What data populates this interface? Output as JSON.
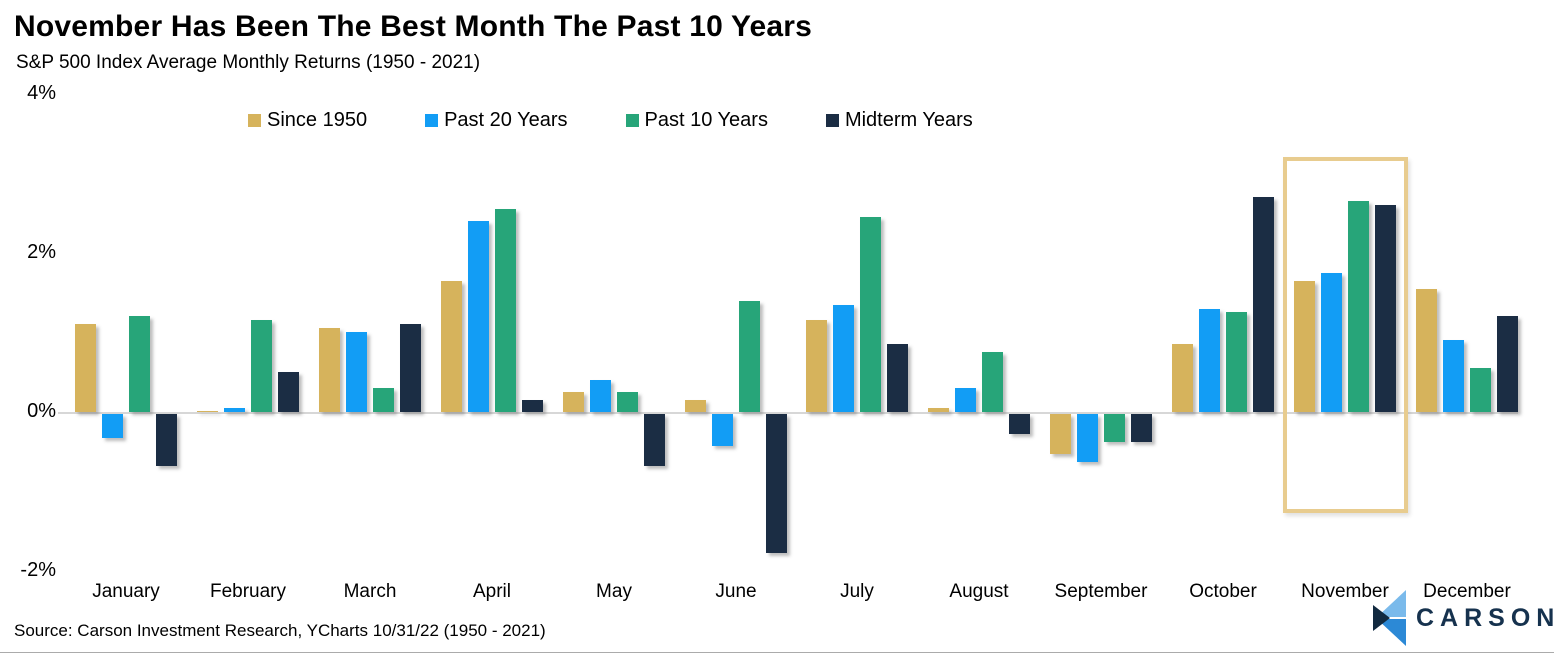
{
  "header": {
    "title": "November Has Been The Best Month The Past 10 Years",
    "subtitle": "S&P 500 Index Average Monthly Returns (1950 - 2021)"
  },
  "chart_data": {
    "type": "bar",
    "title": "November Has Been The Best Month The Past 10 Years",
    "subtitle": "S&P 500 Index Average Monthly Returns (1950 - 2021)",
    "categories": [
      "January",
      "February",
      "March",
      "April",
      "May",
      "June",
      "July",
      "August",
      "September",
      "October",
      "November",
      "December"
    ],
    "series": [
      {
        "name": "Since 1950",
        "color": "#d6b35c",
        "values": [
          1.1,
          0.0,
          1.05,
          1.65,
          0.25,
          0.15,
          1.15,
          0.05,
          -0.5,
          0.85,
          1.65,
          1.55
        ]
      },
      {
        "name": "Past 20 Years",
        "color": "#129df5",
        "values": [
          -0.3,
          0.05,
          1.0,
          2.4,
          0.4,
          -0.4,
          1.35,
          0.3,
          -0.6,
          1.3,
          1.75,
          0.9
        ]
      },
      {
        "name": "Past 10 Years",
        "color": "#27a579",
        "values": [
          1.2,
          1.15,
          0.3,
          2.55,
          0.25,
          1.4,
          2.45,
          0.75,
          -0.35,
          1.25,
          2.65,
          0.55
        ]
      },
      {
        "name": "Midterm Years",
        "color": "#1b2d44",
        "values": [
          -0.65,
          0.5,
          1.1,
          0.15,
          -0.65,
          -1.75,
          0.85,
          -0.25,
          -0.35,
          2.7,
          2.6,
          1.2
        ]
      }
    ],
    "yticks": [
      {
        "label": "4%",
        "value": 4
      },
      {
        "label": "2%",
        "value": 2
      },
      {
        "label": "0%",
        "value": 0
      },
      {
        "label": "-2%",
        "value": -2
      }
    ],
    "ylim": [
      -2,
      4
    ],
    "grid": false,
    "legend_position": "top",
    "highlight": {
      "category": "November",
      "border_color": "#e8cc8f"
    }
  },
  "footer": {
    "source": "Source: Carson Investment Research, YCharts 10/31/22 (1950 - 2021)"
  },
  "logo": {
    "text": "CARSON",
    "icon_colors": {
      "light": "#7abaeb",
      "mid": "#2c89d6",
      "dark": "#122a40"
    },
    "text_color": "#16324e"
  }
}
